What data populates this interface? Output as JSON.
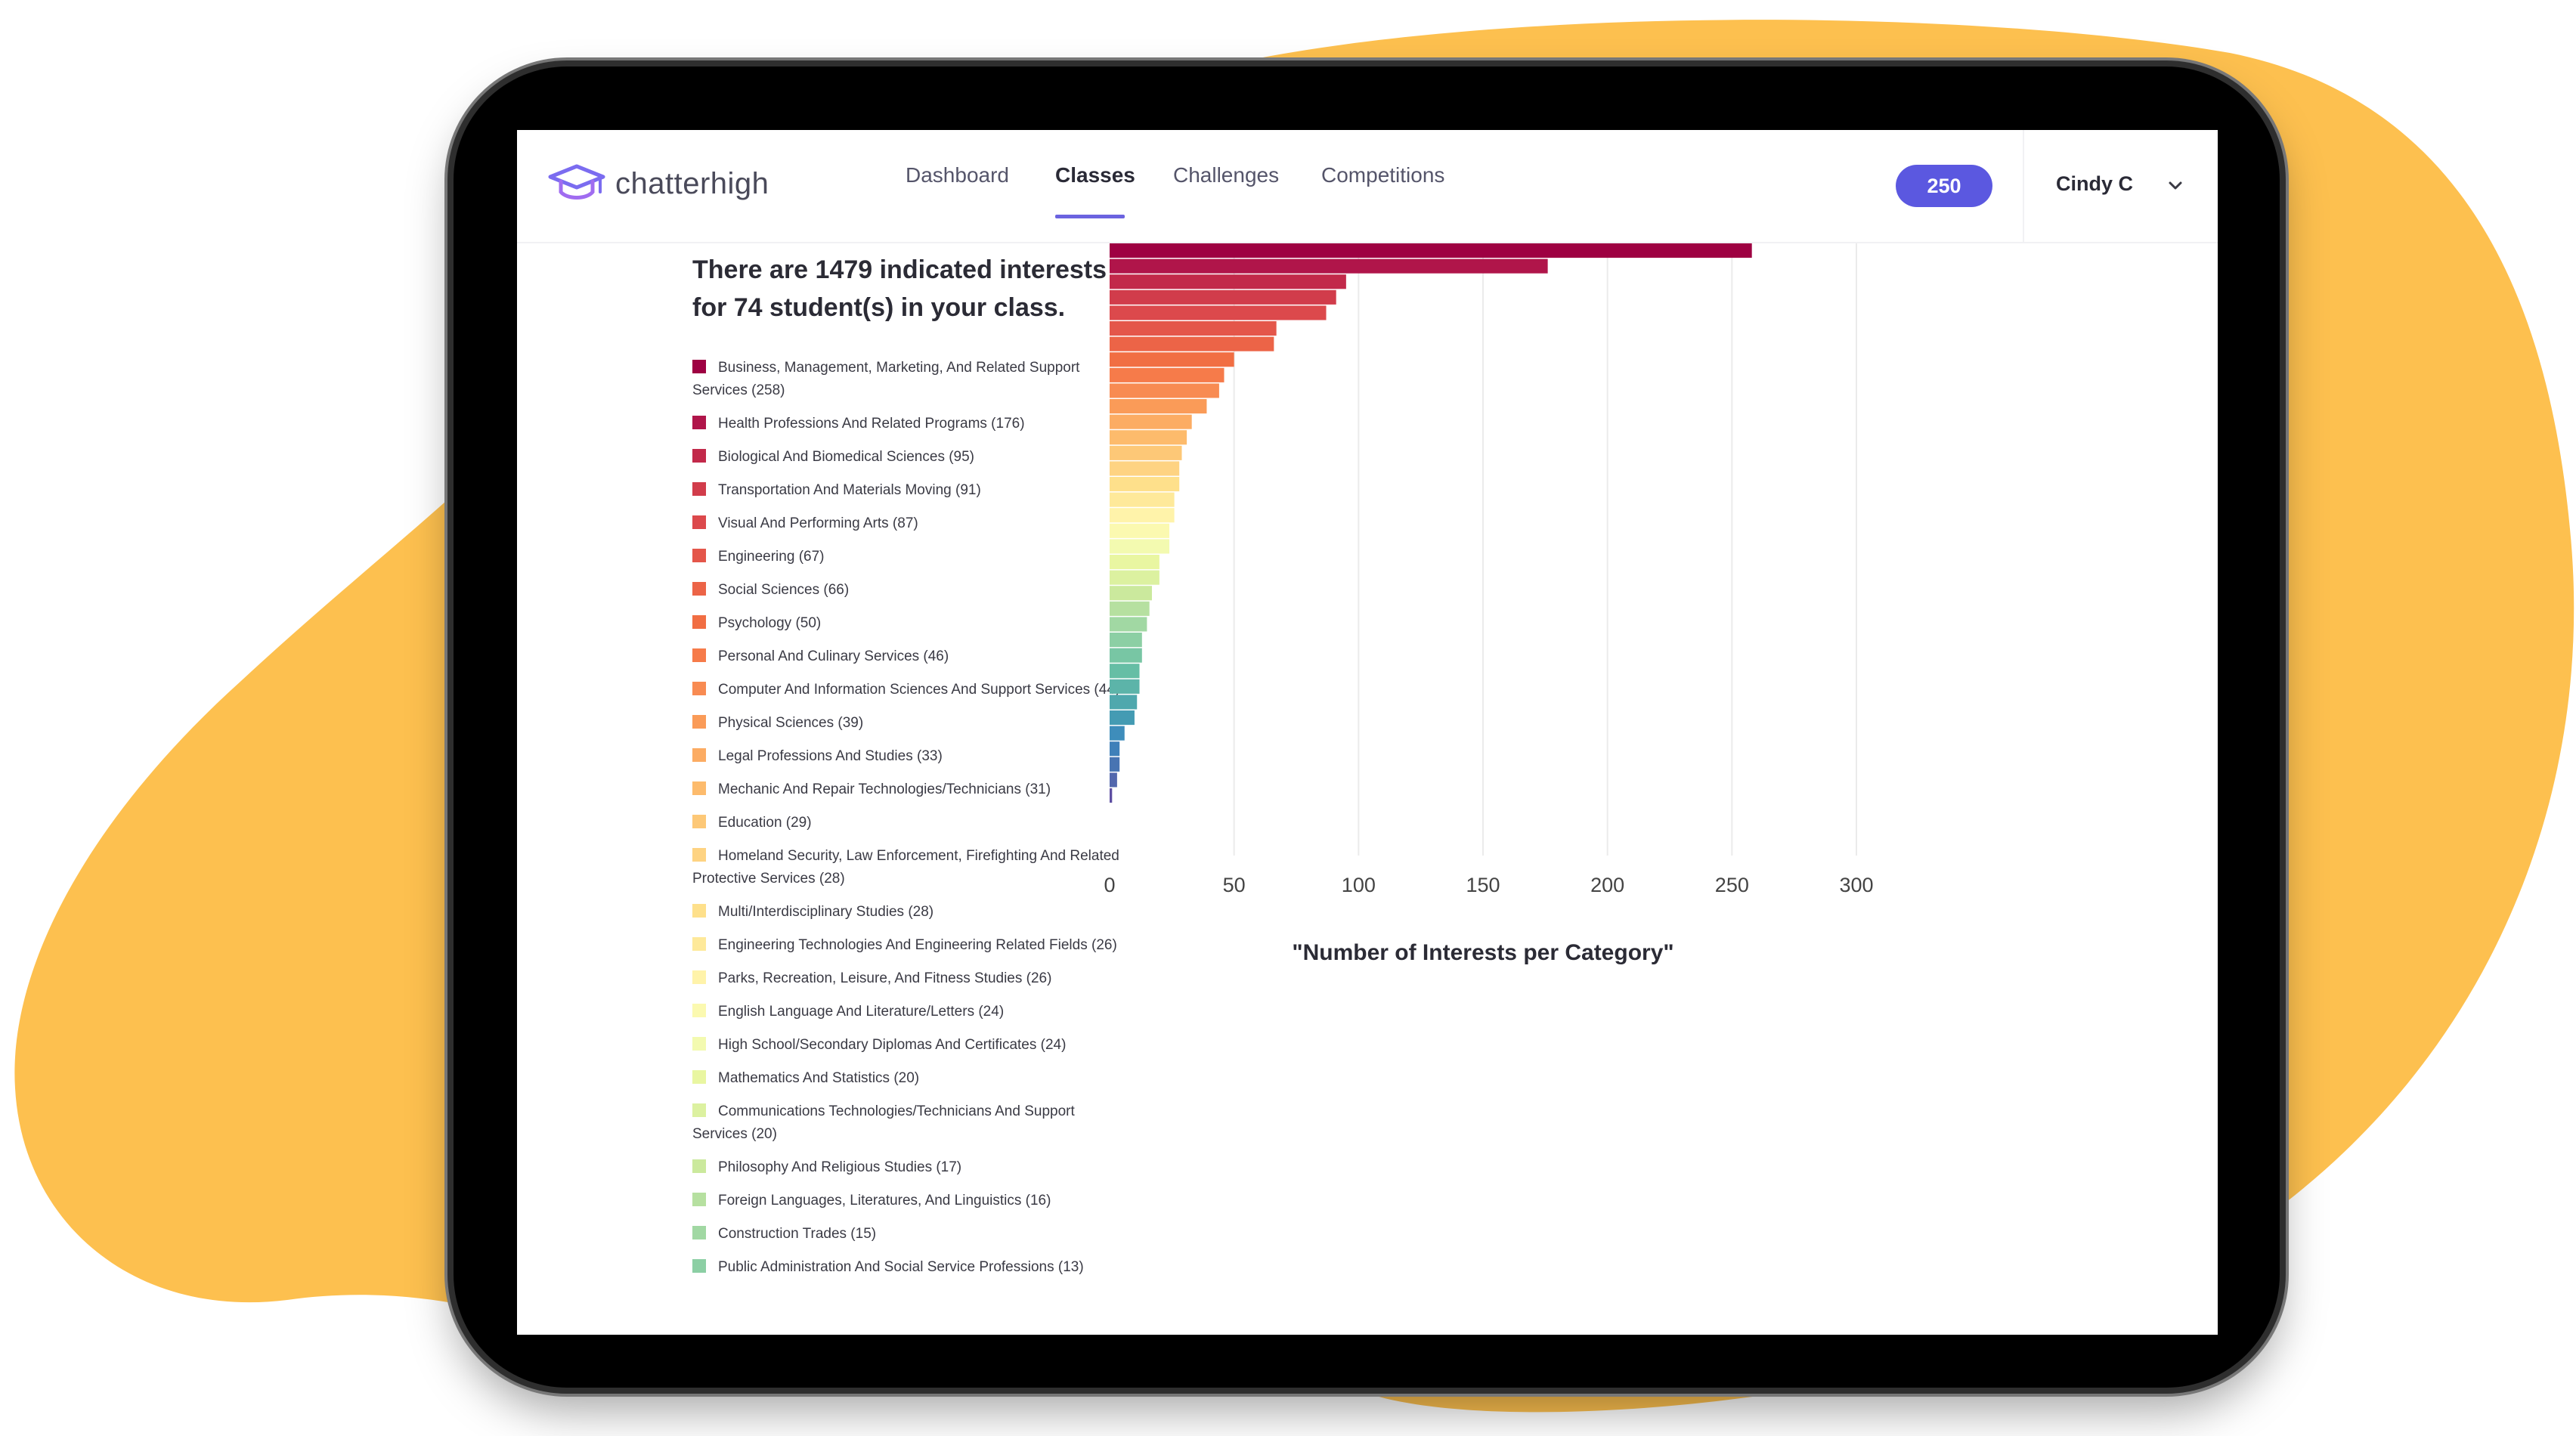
{
  "header": {
    "logo_text": "chatterhigh",
    "nav": [
      {
        "label": "Dashboard",
        "active": false
      },
      {
        "label": "Classes",
        "active": true
      },
      {
        "label": "Challenges",
        "active": false
      },
      {
        "label": "Competitions",
        "active": false
      }
    ],
    "points": "250",
    "user_name": "Cindy C"
  },
  "summary": {
    "line1": "There are 1479 indicated interests",
    "line2": "for 74 student(s) in your class."
  },
  "legend": [
    {
      "label": "Business, Management, Marketing, And Related Support Services (258)",
      "color": "#9e0142"
    },
    {
      "label": "Health Professions And Related Programs (176)",
      "color": "#b0154a"
    },
    {
      "label": "Biological And Biomedical Sciences (95)",
      "color": "#c2294a"
    },
    {
      "label": "Transportation And Materials Moving (91)",
      "color": "#d13c4b"
    },
    {
      "label": "Visual And Performing Arts (87)",
      "color": "#dc494c"
    },
    {
      "label": "Engineering (67)",
      "color": "#e4564a"
    },
    {
      "label": "Social Sciences (66)",
      "color": "#ec6447"
    },
    {
      "label": "Psychology (50)",
      "color": "#f16e43"
    },
    {
      "label": "Personal And Culinary Services (46)",
      "color": "#f67b4a"
    },
    {
      "label": "Computer And Information Sciences And Support Services (44)",
      "color": "#f88b52"
    },
    {
      "label": "Physical Sciences (39)",
      "color": "#fa9b58"
    },
    {
      "label": "Legal Professions And Studies (33)",
      "color": "#fcac63"
    },
    {
      "label": "Mechanic And Repair Technologies/Technicians (31)",
      "color": "#fdbb6c"
    },
    {
      "label": "Education (29)",
      "color": "#fdc877"
    },
    {
      "label": "Homeland Security, Law Enforcement, Firefighting And Related Protective Services (28)",
      "color": "#fed382"
    },
    {
      "label": "Multi/Interdisciplinary Studies (28)",
      "color": "#fee08b"
    },
    {
      "label": "Engineering Technologies And Engineering Related Fields (26)",
      "color": "#fee99a"
    },
    {
      "label": "Parks, Recreation, Leisure, And Fitness Studies (26)",
      "color": "#fff3aa"
    },
    {
      "label": "English Language And Literature/Letters (24)",
      "color": "#fbf9b0"
    },
    {
      "label": "High School/Secondary Diplomas And Certificates (24)",
      "color": "#f3fab0"
    },
    {
      "label": "Mathematics And Statistics (20)",
      "color": "#e9f6a1"
    },
    {
      "label": "Communications Technologies/Technicians And Support Services (20)",
      "color": "#dcf1a0"
    },
    {
      "label": "Philosophy And Religious Studies (17)",
      "color": "#cbe99d"
    },
    {
      "label": "Foreign Languages, Literatures, And Linguistics (16)",
      "color": "#b6e0a0"
    },
    {
      "label": "Construction Trades (15)",
      "color": "#a1d8a3"
    },
    {
      "label": "Public Administration And Social Service Professions (13)",
      "color": "#8ccfa4"
    }
  ],
  "chart_data": {
    "type": "bar",
    "orientation": "horizontal",
    "xlabel": "\"Number of Interests per Category\"",
    "xlim": [
      0,
      300
    ],
    "xticks": [
      0,
      50,
      100,
      150,
      200,
      250,
      300
    ],
    "grid": true,
    "values": [
      258,
      176,
      95,
      91,
      87,
      67,
      66,
      50,
      46,
      44,
      39,
      33,
      31,
      29,
      28,
      28,
      26,
      26,
      24,
      24,
      20,
      20,
      17,
      16,
      15,
      13,
      13,
      12,
      12,
      11,
      10,
      6,
      4,
      4,
      3,
      1
    ],
    "colors": [
      "#9e0142",
      "#b0154a",
      "#c2294a",
      "#d13c4b",
      "#dc494c",
      "#e4564a",
      "#ec6447",
      "#f16e43",
      "#f67b4a",
      "#f88b52",
      "#fa9b58",
      "#fcac63",
      "#fdbb6c",
      "#fdc877",
      "#fed382",
      "#fee08b",
      "#fee99a",
      "#fff3aa",
      "#fbf9b0",
      "#f3fab0",
      "#e9f6a1",
      "#dcf1a0",
      "#cbe99d",
      "#b6e0a0",
      "#a1d8a3",
      "#8ccfa4",
      "#78c6a4",
      "#66bea5",
      "#5cb4a9",
      "#4fa8ad",
      "#449bb3",
      "#3e8dbb",
      "#3f80b9",
      "#4874b2",
      "#5267ad",
      "#5e4fa2"
    ]
  },
  "colors": {
    "accent": "#5b58e0",
    "blob": "#fdc04f"
  }
}
